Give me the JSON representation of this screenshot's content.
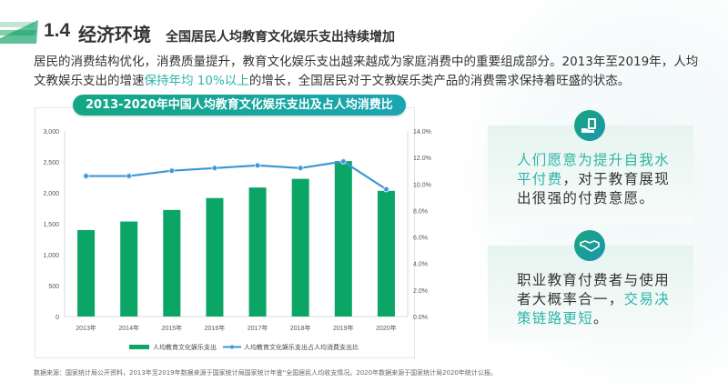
{
  "header": {
    "section_number": "1.4",
    "section_title": "经济环境",
    "subtitle": "全国居民人均教育文化娱乐支出持续增加"
  },
  "intro": {
    "part1": "居民的消费结构优化，消费质量提升，教育文化娱乐支出越来越成为家庭消费中的重要组成部分。2013年至2019年，人均文教娱乐支出的增速",
    "highlight": "保持年均 10%以上",
    "part2": "的增长，全国居民对于文教娱乐类产品的消费需求保持着旺盛的状态。"
  },
  "chart_data": {
    "type": "bar+line",
    "title": "2013-2020年中国人均教育文化娱乐支出及占人均消费比",
    "categories": [
      "2013年",
      "2014年",
      "2015年",
      "2016年",
      "2017年",
      "2018年",
      "2019年",
      "2020年"
    ],
    "series": [
      {
        "name": "人均教育文化娱乐支出",
        "type": "bar",
        "axis": "left",
        "color": "#0ba566",
        "values": [
          1398,
          1536,
          1723,
          1915,
          2086,
          2226,
          2513,
          2032
        ]
      },
      {
        "name": "人均教育文化娱乐支出占人均消费支出比",
        "type": "line",
        "axis": "right",
        "color": "#3c96d6",
        "values": [
          10.6,
          10.6,
          11.0,
          11.2,
          11.4,
          11.2,
          11.7,
          9.6
        ]
      }
    ],
    "y_left": {
      "range": [
        0,
        3000
      ],
      "ticks": [
        "0",
        "500",
        "1,000",
        "1,500",
        "2,000",
        "2,500",
        "3,000"
      ]
    },
    "y_right": {
      "range": [
        0,
        14
      ],
      "ticks": [
        "0.0%",
        "2.0%",
        "4.0%",
        "6.0%",
        "8.0%",
        "10.0%",
        "12.0%",
        "14.0%"
      ]
    },
    "grid": false,
    "legend": "bottom"
  },
  "cards": [
    {
      "icon": "money-hand-icon",
      "highlight": "人们愿意为提升自我水平付费",
      "text": "，对于教育展现出很强的付费意愿。"
    },
    {
      "icon": "handshake-icon",
      "text": "职业教育付费者与使用者大概率合一，",
      "highlight": "交易决策链路更短",
      "tail": "。"
    }
  ],
  "source": "数据来源：国家统计局公开资料，2013年至2019年数据来源于国家统计局国家统计年鉴“全国居民人均收支情况。2020年数据来源于国家统计局2020年统计公报。",
  "colors": {
    "accent": "#2fb4a8",
    "bar": "#0ba566",
    "line": "#3c96d6"
  }
}
